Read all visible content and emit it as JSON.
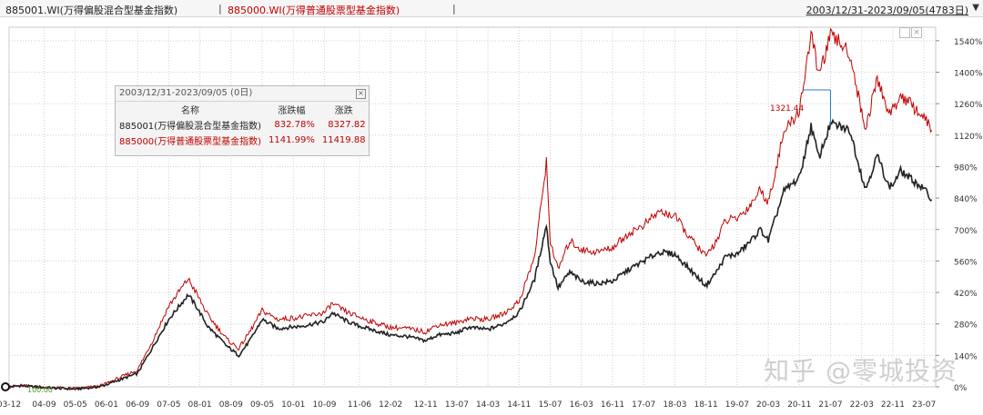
{
  "header": {
    "series1": "885001.WI(万得偏股混合型基金指数)",
    "sep1": "|",
    "series2": "885000.WI(万得普通股票型基金指数)",
    "sep2": "|",
    "date_range": "2003/12/31-2023/09/05(4783日)",
    "dropdown_icon": "triangle-down"
  },
  "info_box": {
    "title": "2003/12/31-2023/09/05 (0日)",
    "columns": [
      "名称",
      "涨跌幅",
      "涨跌"
    ],
    "rows": [
      {
        "name": "885001(万得偏股混合型基金指数)",
        "pct": "832.78%",
        "chg": "8327.82"
      },
      {
        "name": "885000(万得普通股票型基金指数)",
        "pct": "1141.99%",
        "chg": "11419.88"
      }
    ]
  },
  "annotations": {
    "start_value": "100.00",
    "peak_label": "1321.44"
  },
  "watermark": "知乎 @零城投资",
  "colors": {
    "series1": "#222222",
    "series2": "#c00000",
    "grid": "#d0d0d0",
    "peak_marker": "#1e7fd0"
  },
  "chart_data": {
    "type": "line",
    "x_ticks": [
      "03-12",
      "04-09",
      "05-05",
      "06-01",
      "06-09",
      "07-05",
      "08-01",
      "08-09",
      "09-05",
      "10-01",
      "10-09",
      "11-06",
      "12-02",
      "12-11",
      "13-07",
      "14-03",
      "14-11",
      "15-07",
      "16-03",
      "16-11",
      "17-07",
      "18-03",
      "18-11",
      "19-07",
      "20-03",
      "20-11",
      "21-07",
      "22-03",
      "22-11",
      "23-07"
    ],
    "y_ticks": [
      "0%",
      "140%",
      "280%",
      "420%",
      "560%",
      "700%",
      "840%",
      "980%",
      "1120%",
      "1260%",
      "1400%",
      "1540%"
    ],
    "ylim": [
      0,
      1600
    ],
    "series": [
      {
        "name": "885001.WI(万得偏股混合型基金指数)",
        "points": [
          [
            "03-12",
            0
          ],
          [
            "04-03",
            5
          ],
          [
            "04-09",
            -3
          ],
          [
            "05-05",
            -10
          ],
          [
            "05-11",
            0
          ],
          [
            "06-01",
            10
          ],
          [
            "06-09",
            60
          ],
          [
            "07-01",
            180
          ],
          [
            "07-05",
            300
          ],
          [
            "07-10",
            410
          ],
          [
            "07-12",
            360
          ],
          [
            "08-03",
            270
          ],
          [
            "08-08",
            180
          ],
          [
            "08-11",
            140
          ],
          [
            "09-02",
            210
          ],
          [
            "09-05",
            300
          ],
          [
            "09-09",
            260
          ],
          [
            "10-03",
            270
          ],
          [
            "10-09",
            290
          ],
          [
            "10-11",
            330
          ],
          [
            "11-03",
            290
          ],
          [
            "11-06",
            270
          ],
          [
            "11-10",
            250
          ],
          [
            "12-02",
            230
          ],
          [
            "12-06",
            225
          ],
          [
            "12-11",
            205
          ],
          [
            "13-02",
            230
          ],
          [
            "13-07",
            240
          ],
          [
            "13-10",
            265
          ],
          [
            "14-03",
            255
          ],
          [
            "14-07",
            280
          ],
          [
            "14-11",
            330
          ],
          [
            "15-03",
            480
          ],
          [
            "15-06",
            720
          ],
          [
            "15-07",
            560
          ],
          [
            "15-09",
            440
          ],
          [
            "15-12",
            510
          ],
          [
            "16-03",
            470
          ],
          [
            "16-07",
            460
          ],
          [
            "16-11",
            470
          ],
          [
            "17-03",
            520
          ],
          [
            "17-07",
            560
          ],
          [
            "17-11",
            600
          ],
          [
            "18-03",
            590
          ],
          [
            "18-07",
            520
          ],
          [
            "18-11",
            450
          ],
          [
            "19-02",
            520
          ],
          [
            "19-04",
            580
          ],
          [
            "19-07",
            590
          ],
          [
            "19-10",
            640
          ],
          [
            "20-01",
            700
          ],
          [
            "20-03",
            650
          ],
          [
            "20-07",
            870
          ],
          [
            "20-11",
            930
          ],
          [
            "21-02",
            1160
          ],
          [
            "21-04",
            1020
          ],
          [
            "21-07",
            1170
          ],
          [
            "21-09",
            1160
          ],
          [
            "21-12",
            1140
          ],
          [
            "22-03",
            940
          ],
          [
            "22-04",
            880
          ],
          [
            "22-07",
            1030
          ],
          [
            "22-10",
            890
          ],
          [
            "22-11",
            900
          ],
          [
            "23-01",
            960
          ],
          [
            "23-04",
            920
          ],
          [
            "23-07",
            880
          ],
          [
            "23-09",
            832.78
          ]
        ]
      },
      {
        "name": "885000.WI(万得普通股票型基金指数)",
        "points": [
          [
            "03-12",
            0
          ],
          [
            "04-03",
            6
          ],
          [
            "04-09",
            -2
          ],
          [
            "05-05",
            -8
          ],
          [
            "05-11",
            2
          ],
          [
            "06-01",
            15
          ],
          [
            "06-09",
            75
          ],
          [
            "07-01",
            210
          ],
          [
            "07-05",
            360
          ],
          [
            "07-10",
            480
          ],
          [
            "07-12",
            420
          ],
          [
            "08-03",
            320
          ],
          [
            "08-08",
            210
          ],
          [
            "08-11",
            170
          ],
          [
            "09-02",
            250
          ],
          [
            "09-05",
            340
          ],
          [
            "09-09",
            300
          ],
          [
            "10-03",
            310
          ],
          [
            "10-09",
            330
          ],
          [
            "10-11",
            370
          ],
          [
            "11-03",
            330
          ],
          [
            "11-06",
            310
          ],
          [
            "11-10",
            285
          ],
          [
            "12-02",
            265
          ],
          [
            "12-06",
            260
          ],
          [
            "12-11",
            245
          ],
          [
            "13-02",
            275
          ],
          [
            "13-07",
            285
          ],
          [
            "13-10",
            305
          ],
          [
            "14-03",
            300
          ],
          [
            "14-07",
            325
          ],
          [
            "14-11",
            380
          ],
          [
            "15-03",
            580
          ],
          [
            "15-06",
            1000
          ],
          [
            "15-07",
            650
          ],
          [
            "15-09",
            520
          ],
          [
            "15-12",
            650
          ],
          [
            "16-03",
            610
          ],
          [
            "16-07",
            600
          ],
          [
            "16-11",
            620
          ],
          [
            "17-03",
            680
          ],
          [
            "17-07",
            720
          ],
          [
            "17-11",
            780
          ],
          [
            "18-03",
            760
          ],
          [
            "18-07",
            660
          ],
          [
            "18-11",
            580
          ],
          [
            "19-02",
            660
          ],
          [
            "19-04",
            740
          ],
          [
            "19-07",
            750
          ],
          [
            "19-10",
            800
          ],
          [
            "20-01",
            880
          ],
          [
            "20-03",
            820
          ],
          [
            "20-07",
            1130
          ],
          [
            "20-11",
            1230
          ],
          [
            "21-02",
            1570
          ],
          [
            "21-04",
            1390
          ],
          [
            "21-07",
            1560
          ],
          [
            "21-09",
            1540
          ],
          [
            "21-12",
            1480
          ],
          [
            "22-03",
            1220
          ],
          [
            "22-04",
            1150
          ],
          [
            "22-07",
            1370
          ],
          [
            "22-10",
            1220
          ],
          [
            "22-11",
            1230
          ],
          [
            "23-01",
            1300
          ],
          [
            "23-04",
            1250
          ],
          [
            "23-07",
            1200
          ],
          [
            "23-09",
            1141.99
          ]
        ]
      }
    ]
  }
}
